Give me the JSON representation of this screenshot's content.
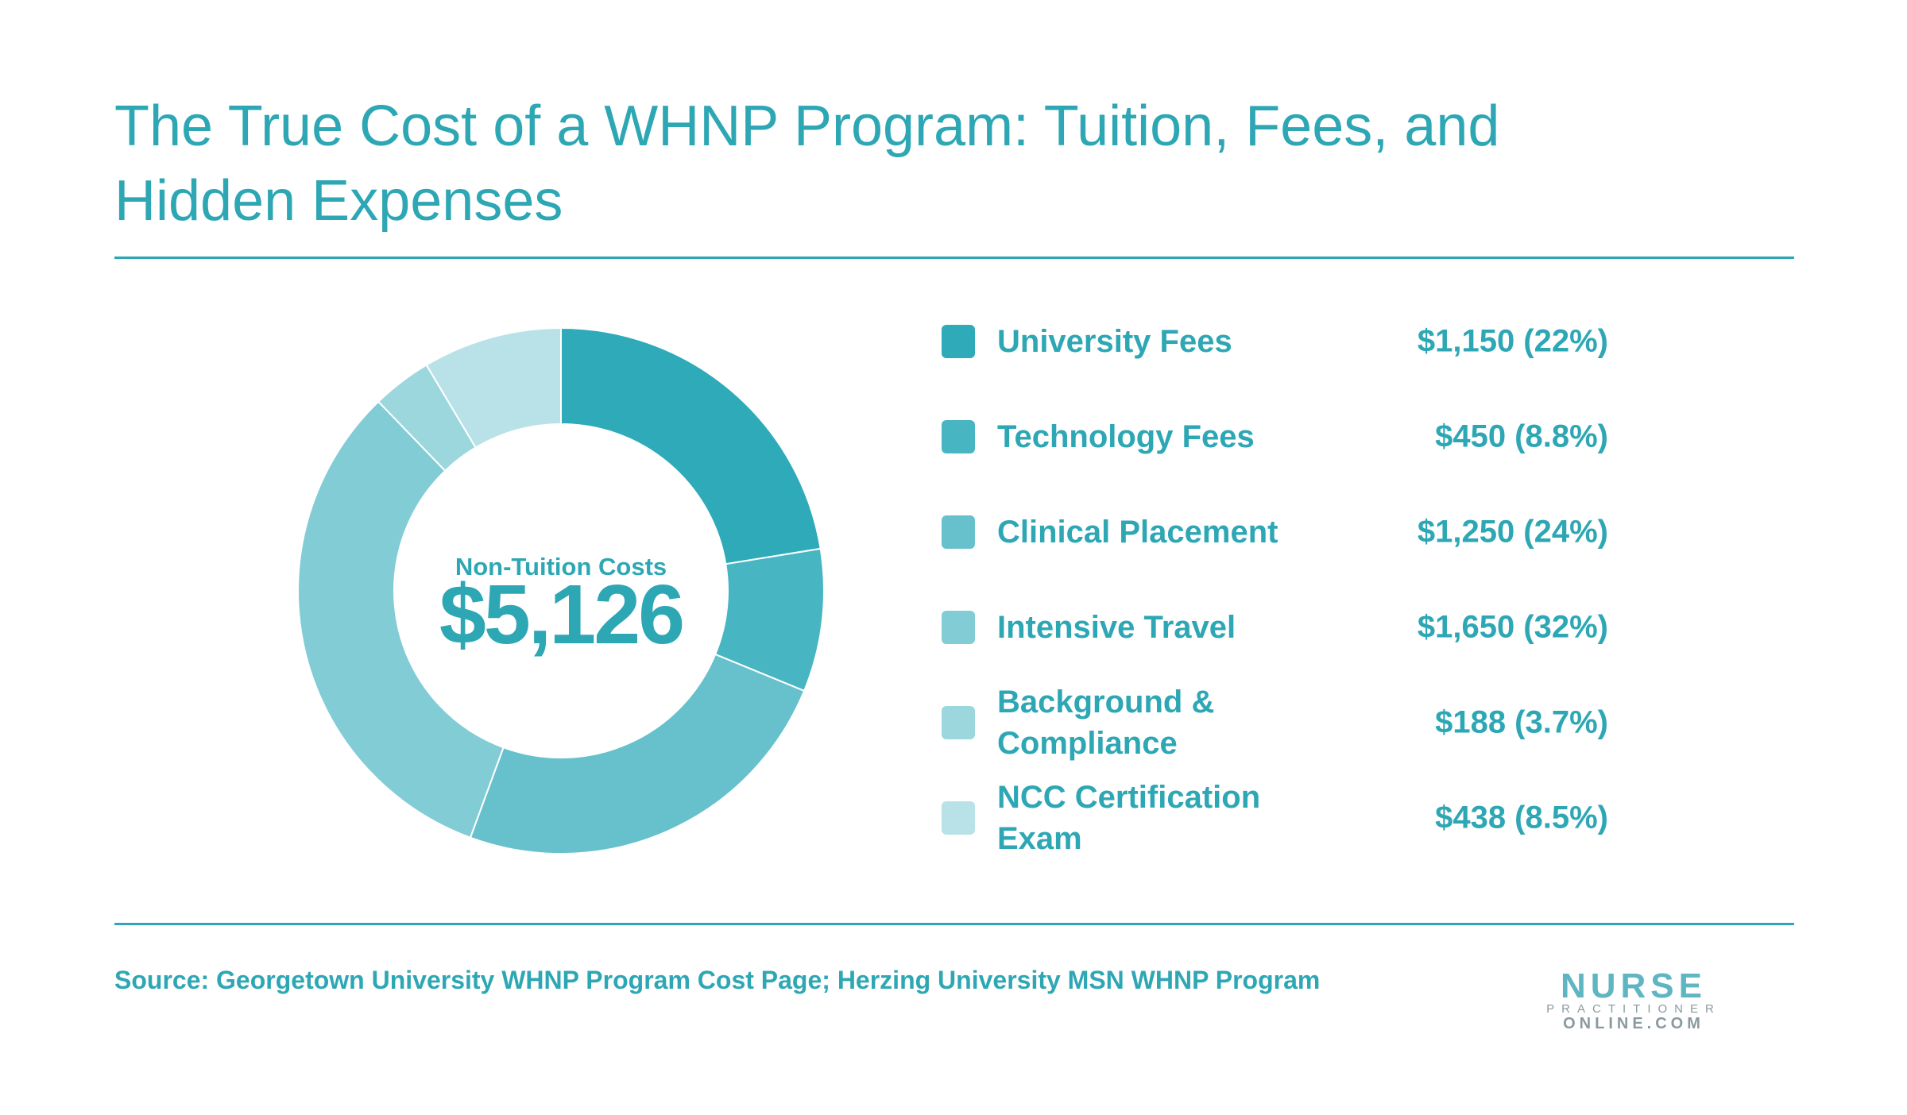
{
  "chart_data": {
    "type": "donut",
    "title": "The True Cost of a WHNP Program: Tuition, Fees, and Hidden Expenses",
    "center_label": "Non-Tuition Costs",
    "center_total": "$5,126",
    "categories": [
      "University Fees",
      "Technology Fees",
      "Clinical Placement",
      "Intensive Travel",
      "Background & Compliance",
      "NCC Certification Exam"
    ],
    "values": [
      1150,
      450,
      1250,
      1650,
      188,
      438
    ],
    "value_labels": [
      "$1,150 (22%)",
      "$450 (8.8%)",
      "$1,250 (24%)",
      "$1,650 (32%)",
      "$188 (3.7%)",
      "$438 (8.5%)"
    ],
    "colors": [
      "#2eaab9",
      "#48b5c3",
      "#66c1cc",
      "#82ccd5",
      "#9dd7de",
      "#b8e2e7"
    ],
    "source": "Source: Georgetown University WHNP Program Cost Page; Herzing University MSN WHNP Program",
    "logo": [
      "NURSE",
      "PRACTITIONER",
      "ONLINE.COM"
    ]
  }
}
